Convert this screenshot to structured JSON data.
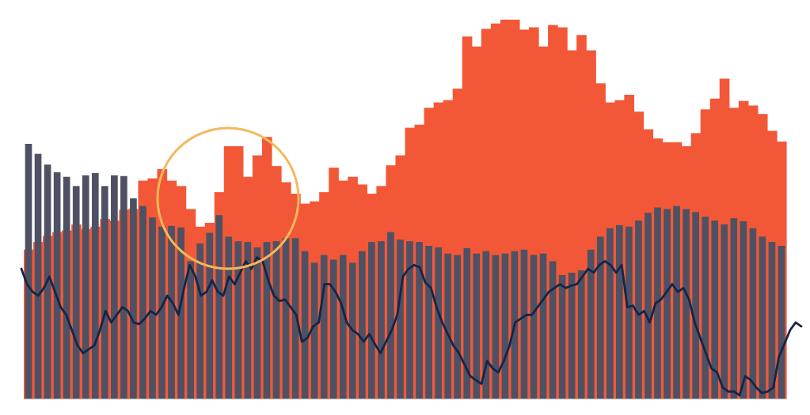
{
  "chart_data": {
    "type": "bar",
    "title": "",
    "xlabel": "",
    "ylabel": "",
    "grid": false,
    "legend": "none",
    "ylim": [
      0,
      500
    ],
    "colors": {
      "orange_bars": "#F25837",
      "gray_bars": "#4E5163",
      "line": "#12264A",
      "highlight_circle": "#F5B85A",
      "background": "#FFFFFF"
    },
    "series": [
      {
        "type": "bar",
        "color": "#F25837",
        "values": [
          195,
          205,
          213,
          218,
          220,
          228,
          222,
          225,
          235,
          233,
          247,
          248,
          285,
          288,
          300,
          285,
          278,
          248,
          225,
          230,
          270,
          330,
          330,
          290,
          318,
          342,
          304,
          283,
          268,
          255,
          258,
          270,
          302,
          285,
          290,
          280,
          268,
          278,
          305,
          318,
          354,
          358,
          380,
          387,
          390,
          405,
          473,
          460,
          483,
          490,
          495,
          495,
          482,
          485,
          460,
          488,
          485,
          455,
          475,
          455,
          412,
          387,
          390,
          397,
          375,
          352,
          340,
          335,
          335,
          330,
          347,
          378,
          392,
          418,
          380,
          389,
          383,
          372,
          350,
          336
        ]
      },
      {
        "type": "bar",
        "color": "#4E5163",
        "values": [
          333,
          320,
          306,
          296,
          290,
          278,
          292,
          295,
          278,
          292,
          291,
          262,
          252,
          237,
          225,
          226,
          224,
          180,
          203,
          217,
          240,
          212,
          206,
          205,
          198,
          205,
          206,
          210,
          210,
          193,
          178,
          188,
          182,
          188,
          178,
          193,
          205,
          206,
          218,
          208,
          206,
          205,
          200,
          198,
          190,
          188,
          197,
          190,
          193,
          188,
          190,
          193,
          195,
          188,
          190,
          180,
          162,
          165,
          168,
          195,
          212,
          223,
          227,
          225,
          233,
          243,
          250,
          248,
          252,
          248,
          244,
          238,
          233,
          228,
          236,
          232,
          223,
          212,
          205,
          200
        ]
      },
      {
        "type": "line",
        "color": "#12264A",
        "values": [
          170,
          150,
          140,
          135,
          145,
          160,
          140,
          120,
          110,
          90,
          70,
          60,
          65,
          70,
          90,
          115,
          100,
          110,
          120,
          115,
          100,
          98,
          105,
          115,
          110,
          120,
          135,
          125,
          110,
          145,
          175,
          160,
          135,
          140,
          155,
          140,
          135,
          160,
          150,
          165,
          180,
          170,
          185,
          180,
          155,
          135,
          128,
          130,
          120,
          110,
          75,
          80,
          95,
          100,
          150,
          150,
          140,
          125,
          100,
          90,
          85,
          75,
          85,
          72,
          60,
          75,
          90,
          110,
          160,
          170,
          175,
          172,
          152,
          145,
          120,
          100,
          85,
          70,
          60,
          45,
          30,
          25,
          20,
          50,
          40,
          35,
          50,
          70,
          100,
          105,
          110,
          110,
          120,
          130,
          140,
          145,
          150,
          145,
          148,
          150,
          160,
          170,
          165,
          175,
          180,
          175,
          165,
          175,
          120,
          122,
          110,
          115,
          100,
          125,
          130,
          140,
          150,
          140,
          145,
          130,
          100,
          80,
          60,
          40,
          35,
          15,
          10,
          10,
          5,
          30,
          25,
          15,
          8,
          10,
          15,
          55,
          72,
          90,
          100,
          95
        ]
      }
    ]
  }
}
